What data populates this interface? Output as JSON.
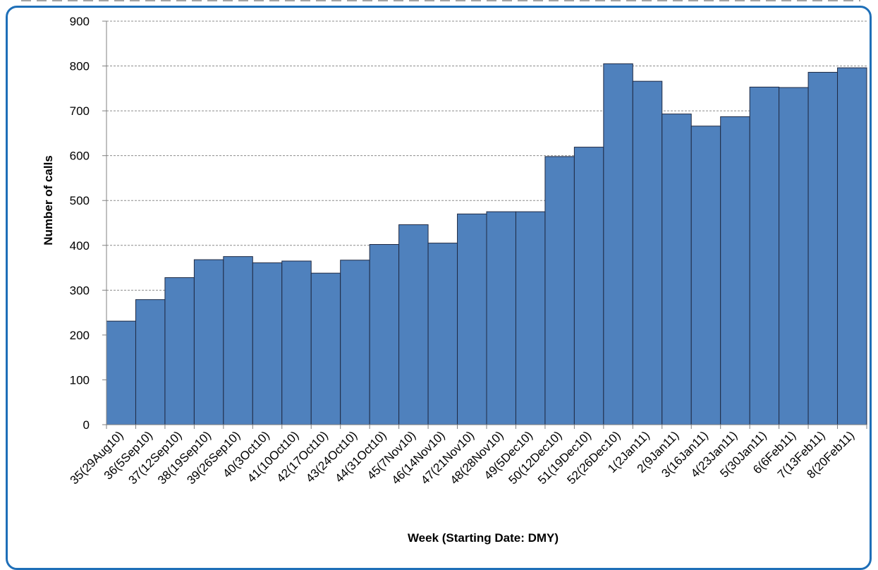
{
  "chart_data": {
    "type": "bar",
    "title": "",
    "xlabel": "Week (Starting Date: DMY)",
    "ylabel": "Number of calls",
    "ylim": [
      0,
      900
    ],
    "yticks": [
      0,
      100,
      200,
      300,
      400,
      500,
      600,
      700,
      800,
      900
    ],
    "grid": true,
    "bar_color": "#4f81bd",
    "categories": [
      "35(29Aug10)",
      "36(5Sep10)",
      "37(12Sep10)",
      "38(19Sep10)",
      "39(26Sep10)",
      "40(3Oct10)",
      "41(10Oct10)",
      "42(17Oct10)",
      "43(24Oct10)",
      "44(31Oct10)",
      "45(7Nov10)",
      "46(14Nov10)",
      "47(21Nov10)",
      "48(28Nov10)",
      "49(5Dec10)",
      "50(12Dec10)",
      "51(19Dec10)",
      "52(26Dec10)",
      "1(2Jan11)",
      "2(9Jan11)",
      "3(16Jan11)",
      "4(23Jan11)",
      "5(30Jan11)",
      "6(6Feb11)",
      "7(13Feb11)",
      "8(20Feb11)"
    ],
    "values": [
      231,
      279,
      328,
      368,
      375,
      361,
      365,
      338,
      367,
      402,
      446,
      405,
      470,
      475,
      475,
      598,
      619,
      805,
      766,
      693,
      666,
      687,
      753,
      752,
      786,
      796
    ]
  },
  "frame_color": "#1e6fb8"
}
